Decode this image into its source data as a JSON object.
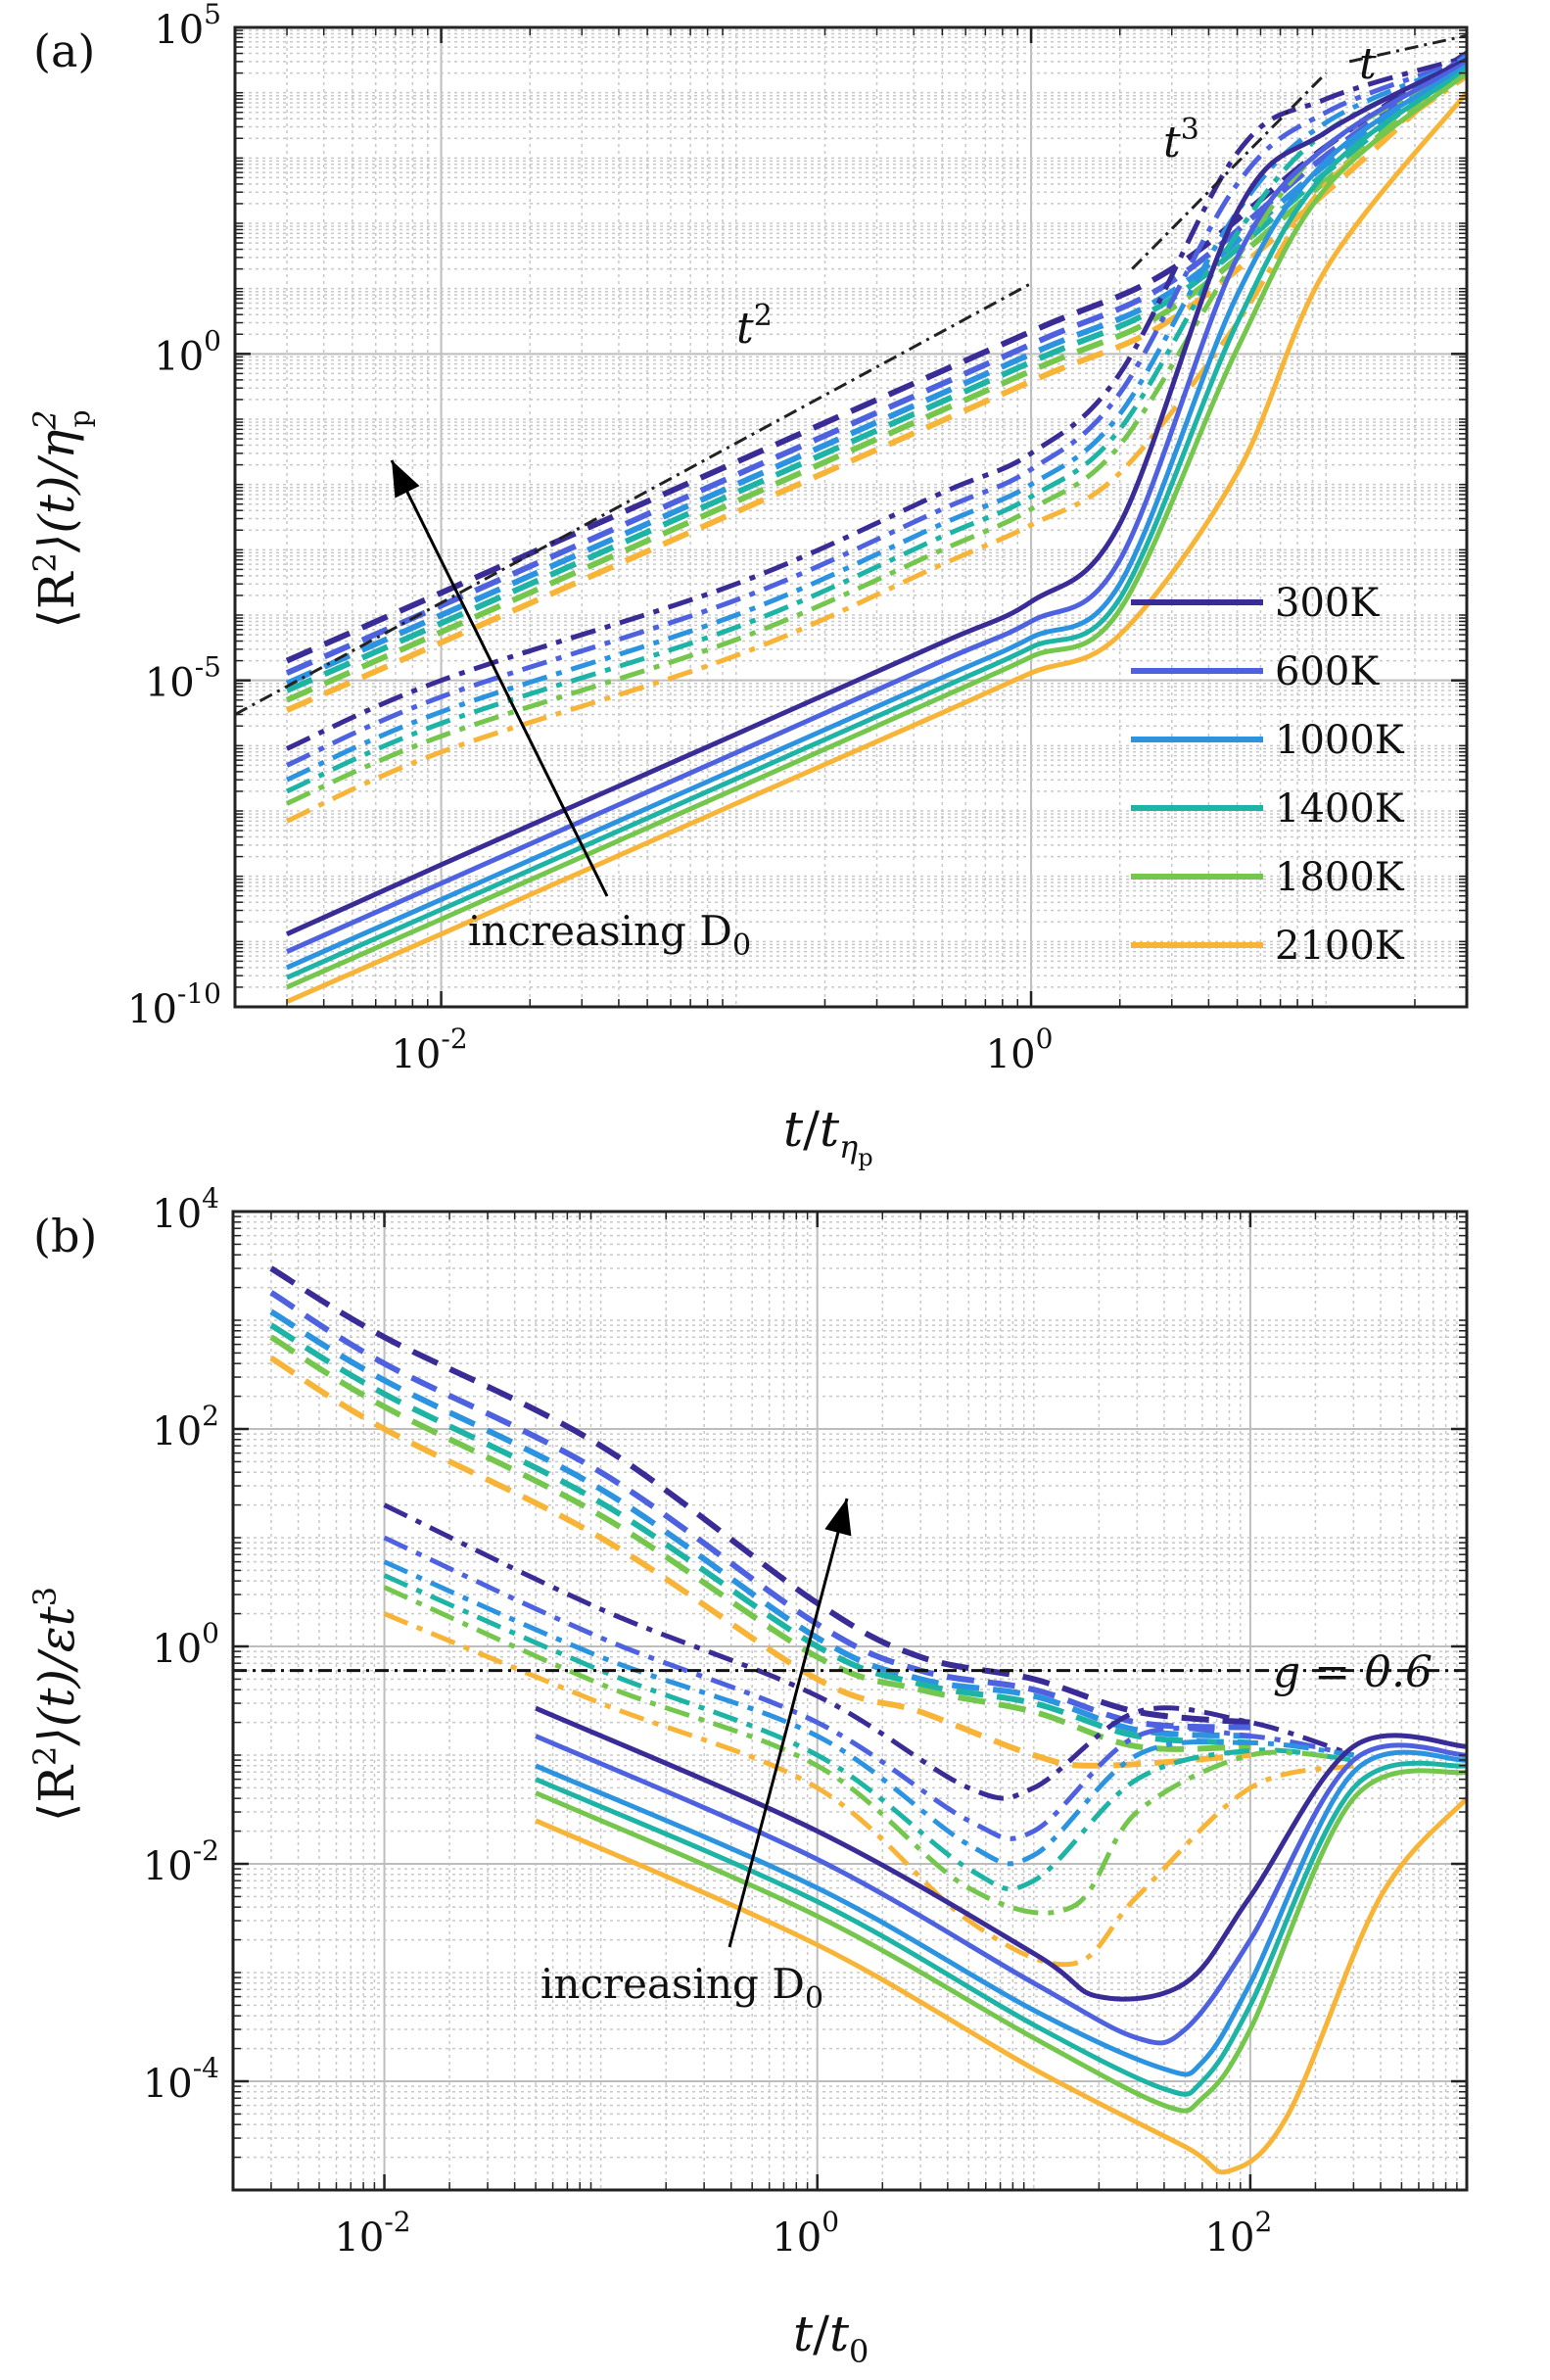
{
  "chart_data": [
    {
      "type": "line",
      "panel_label": "(a)",
      "xlabel": "t/t_ηp",
      "ylabel": "⟨R²⟩(t)/ηp²",
      "xscale": "log",
      "yscale": "log",
      "xlim": [
        0.002,
        30
      ],
      "ylim": [
        1e-10,
        100000
      ],
      "xticks": [
        {
          "v": 0.01,
          "m": "10",
          "e": "-2"
        },
        {
          "v": 1,
          "m": "10",
          "e": "0"
        }
      ],
      "yticks": [
        {
          "v": 1e-10,
          "m": "10",
          "e": "-10"
        },
        {
          "v": 1e-05,
          "m": "10",
          "e": "-5"
        },
        {
          "v": 1,
          "m": "10",
          "e": "0"
        },
        {
          "v": 100000,
          "m": "10",
          "e": "5"
        }
      ],
      "grid": true,
      "legend_position": "lower-right",
      "temperatures": [
        "300K",
        "600K",
        "1000K",
        "1400K",
        "1800K",
        "2100K"
      ],
      "colors": [
        "#3a2c96",
        "#4e62e0",
        "#2b93e0",
        "#1db4a6",
        "#74c64c",
        "#f7b436"
      ],
      "line_styles": {
        "solid": "smallest D0",
        "dashdot": "intermediate D0",
        "dashed": "largest D0"
      },
      "series": [
        {
          "style": "solid",
          "x0": 0.003,
          "y0": [
            8e-10,
            3.5e-10,
            2.5e-10,
            1.5e-10,
            1.2e-10,
            6e-11
          ],
          "slope": 2,
          "knee": 0.8,
          "rise_end": 30,
          "y_end": [
            18000,
            17000,
            16000,
            14000,
            12000,
            9000
          ],
          "k": 6
        }
      ],
      "solid_series": [
        {
          "name": "300K",
          "x": [
            0.003,
            0.01,
            0.1,
            0.5,
            1,
            2,
            5,
            10,
            30
          ],
          "y": [
            1.3e-09,
            1.5e-08,
            1.5e-06,
            3.8e-05,
            0.00016,
            0.0025,
            150.0,
            2500.0,
            32000.0
          ]
        },
        {
          "name": "600K",
          "x": [
            0.003,
            0.01,
            0.1,
            0.5,
            1,
            2,
            5,
            10,
            30
          ],
          "y": [
            7e-10,
            7.8e-09,
            7.8e-07,
            2e-05,
            8e-05,
            0.0007,
            30.0,
            1500.0,
            29000.0
          ]
        },
        {
          "name": "1000K",
          "x": [
            0.003,
            0.01,
            0.1,
            0.5,
            1,
            2,
            5,
            10,
            30
          ],
          "y": [
            4e-10,
            4.4e-09,
            4.4e-07,
            1.1e-05,
            4.5e-05,
            0.0003,
            8,
            900.0,
            26000.0
          ]
        },
        {
          "name": "1400K",
          "x": [
            0.003,
            0.01,
            0.1,
            0.5,
            1,
            2,
            5,
            10,
            30
          ],
          "y": [
            2.8e-10,
            3.1e-09,
            3.1e-07,
            7.8e-06,
            3.2e-05,
            0.00018,
            3,
            600.0,
            23000.0
          ]
        },
        {
          "name": "1800K",
          "x": [
            0.003,
            0.01,
            0.1,
            0.5,
            1,
            2,
            5,
            10,
            30
          ],
          "y": [
            2e-10,
            2.2e-09,
            2.2e-07,
            5.6e-06,
            2.3e-05,
            0.00012,
            1.2,
            350.0,
            20000.0
          ]
        },
        {
          "name": "2100K",
          "x": [
            0.003,
            0.01,
            0.1,
            0.5,
            1,
            2,
            5,
            10,
            30
          ],
          "y": [
            1.2e-10,
            1.3e-09,
            1.3e-07,
            3.2e-06,
            1.3e-05,
            5e-05,
            0.015,
            20,
            10000.0
          ]
        }
      ],
      "dashdot_series": [
        {
          "name": "300K",
          "x": [
            0.003,
            0.01,
            0.1,
            0.5,
            1,
            2,
            5,
            10,
            30
          ],
          "y": [
            9e-07,
            1e-05,
            0.0003,
            0.0075,
            0.03,
            0.5,
            1200.0,
            8000.0,
            35000.0
          ]
        },
        {
          "name": "600K",
          "x": [
            0.003,
            0.01,
            0.1,
            0.5,
            1,
            2,
            5,
            10,
            30
          ],
          "y": [
            5e-07,
            5.6e-06,
            0.00017,
            0.0042,
            0.017,
            0.25,
            400.0,
            5000.0,
            32000.0
          ]
        },
        {
          "name": "1000K",
          "x": [
            0.003,
            0.01,
            0.1,
            0.5,
            1,
            2,
            5,
            10,
            30
          ],
          "y": [
            3e-07,
            3.3e-06,
            0.0001,
            0.0025,
            0.01,
            0.12,
            150.0,
            3500.0,
            30000.0
          ]
        },
        {
          "name": "1400K",
          "x": [
            0.003,
            0.01,
            0.1,
            0.5,
            1,
            2,
            5,
            10,
            30
          ],
          "y": [
            2e-07,
            2.2e-06,
            6.5e-05,
            0.0016,
            0.0065,
            0.07,
            70,
            2500.0,
            28000.0
          ]
        },
        {
          "name": "1800K",
          "x": [
            0.003,
            0.01,
            0.1,
            0.5,
            1,
            2,
            5,
            10,
            30
          ],
          "y": [
            1.3e-07,
            1.4e-06,
            4.2e-05,
            0.001,
            0.0042,
            0.04,
            30,
            1500.0,
            25000.0
          ]
        },
        {
          "name": "2100K",
          "x": [
            0.003,
            0.01,
            0.1,
            0.5,
            1,
            2,
            5,
            10,
            30
          ],
          "y": [
            7e-08,
            8e-07,
            2.4e-05,
            0.0006,
            0.0024,
            0.015,
            3,
            400.0,
            18000.0
          ]
        }
      ],
      "dashed_series": [
        {
          "name": "300K",
          "x": [
            0.003,
            0.01,
            0.1,
            1,
            3,
            10,
            30
          ],
          "y": [
            2e-05,
            0.00022,
            0.022,
            2.2,
            20,
            1500.0,
            40000.0
          ]
        },
        {
          "name": "600K",
          "x": [
            0.003,
            0.01,
            0.1,
            1,
            3,
            10,
            30
          ],
          "y": [
            1.3e-05,
            0.00014,
            0.014,
            1.4,
            13,
            1100.0,
            37000.0
          ]
        },
        {
          "name": "1000K",
          "x": [
            0.003,
            0.01,
            0.1,
            1,
            3,
            10,
            30
          ],
          "y": [
            9e-06,
            0.0001,
            0.01,
            1,
            9,
            800.0,
            35000.0
          ]
        },
        {
          "name": "1400K",
          "x": [
            0.003,
            0.01,
            0.1,
            1,
            3,
            10,
            30
          ],
          "y": [
            7e-06,
            7.5e-05,
            0.0075,
            0.75,
            7,
            600.0,
            33000.0
          ]
        },
        {
          "name": "1800K",
          "x": [
            0.003,
            0.01,
            0.1,
            1,
            3,
            10,
            30
          ],
          "y": [
            5e-06,
            5.5e-05,
            0.0055,
            0.55,
            5,
            450.0,
            30000.0
          ]
        },
        {
          "name": "2100K",
          "x": [
            0.003,
            0.01,
            0.1,
            1,
            3,
            10,
            30
          ],
          "y": [
            3.5e-06,
            3.8e-05,
            0.0038,
            0.38,
            3.4,
            300.0,
            27000.0
          ]
        }
      ],
      "reference_lines": [
        {
          "label": "t²",
          "x": [
            0.002,
            1
          ],
          "y": [
            3e-06,
            12
          ]
        },
        {
          "label": "t³",
          "x": [
            2.2,
            10
          ],
          "y": [
            20,
            20000.0
          ]
        },
        {
          "label": "t",
          "x": [
            12,
            30
          ],
          "y": [
            30000.0,
            75000.0
          ]
        }
      ],
      "annotations": [
        {
          "text": "increasing D0",
          "arrow_from": [
            0.05,
            3e-09
          ],
          "arrow_to": [
            0.007,
            0.05
          ]
        }
      ]
    },
    {
      "type": "line",
      "panel_label": "(b)",
      "xlabel": "t/t0",
      "ylabel": "⟨R²⟩(t)/εt³",
      "xscale": "log",
      "yscale": "log",
      "xlim": [
        0.002,
        1000
      ],
      "ylim": [
        1e-05,
        10000
      ],
      "xticks": [
        {
          "v": 0.01,
          "m": "10",
          "e": "-2"
        },
        {
          "v": 1,
          "m": "10",
          "e": "0"
        },
        {
          "v": 100,
          "m": "10",
          "e": "2"
        }
      ],
      "yticks": [
        {
          "v": 0.0001,
          "m": "10",
          "e": "-4"
        },
        {
          "v": 0.01,
          "m": "10",
          "e": "-2"
        },
        {
          "v": 1,
          "m": "10",
          "e": "0"
        },
        {
          "v": 100,
          "m": "10",
          "e": "2"
        },
        {
          "v": 10000,
          "m": "10",
          "e": "4"
        }
      ],
      "grid": true,
      "temperatures": [
        "300K",
        "600K",
        "1000K",
        "1400K",
        "1800K",
        "2100K"
      ],
      "colors": [
        "#3a2c96",
        "#4e62e0",
        "#2b93e0",
        "#1db4a6",
        "#74c64c",
        "#f7b436"
      ],
      "solid_series": [
        {
          "name": "300K",
          "x": [
            0.05,
            1,
            10,
            20,
            50,
            100,
            300,
            1000
          ],
          "y": [
            0.27,
            0.02,
            0.0015,
            0.0006,
            0.0008,
            0.005,
            0.12,
            0.12
          ]
        },
        {
          "name": "600K",
          "x": [
            0.05,
            1,
            10,
            30,
            50,
            100,
            300,
            1000
          ],
          "y": [
            0.15,
            0.011,
            0.0008,
            0.00025,
            0.0003,
            0.002,
            0.09,
            0.1
          ]
        },
        {
          "name": "1000K",
          "x": [
            0.05,
            1,
            10,
            40,
            60,
            100,
            300,
            1000
          ],
          "y": [
            0.08,
            0.006,
            0.00045,
            0.00013,
            0.00015,
            0.0008,
            0.07,
            0.09
          ]
        },
        {
          "name": "1400K",
          "x": [
            0.05,
            1,
            10,
            40,
            60,
            100,
            300,
            1000
          ],
          "y": [
            0.06,
            0.0045,
            0.00033,
            8.5e-05,
            0.0001,
            0.0005,
            0.05,
            0.08
          ]
        },
        {
          "name": "1800K",
          "x": [
            0.05,
            1,
            10,
            40,
            60,
            100,
            300,
            1000
          ],
          "y": [
            0.045,
            0.0033,
            0.00025,
            6e-05,
            7e-05,
            0.0003,
            0.04,
            0.07
          ]
        },
        {
          "name": "2100K",
          "x": [
            0.05,
            1,
            10,
            50,
            80,
            150,
            400,
            1000
          ],
          "y": [
            0.025,
            0.0018,
            0.00013,
            2.5e-05,
            1.5e-05,
            5e-05,
            0.005,
            0.04
          ]
        }
      ],
      "dashdot_series": [
        {
          "name": "300K",
          "x": [
            0.01,
            0.1,
            1,
            5,
            10,
            30,
            100,
            300
          ],
          "y": [
            20,
            2.2,
            0.35,
            0.05,
            0.05,
            0.25,
            0.2,
            0.1
          ]
        },
        {
          "name": "600K",
          "x": [
            0.01,
            0.1,
            1,
            5,
            10,
            30,
            100,
            300
          ],
          "y": [
            10,
            1.2,
            0.2,
            0.025,
            0.02,
            0.15,
            0.15,
            0.1
          ]
        },
        {
          "name": "1000K",
          "x": [
            0.01,
            0.1,
            1,
            5,
            10,
            30,
            100,
            300
          ],
          "y": [
            6,
            0.8,
            0.15,
            0.015,
            0.012,
            0.1,
            0.13,
            0.1
          ]
        },
        {
          "name": "1400K",
          "x": [
            0.01,
            0.1,
            1,
            5,
            10,
            30,
            100,
            300
          ],
          "y": [
            4.5,
            0.6,
            0.1,
            0.009,
            0.007,
            0.06,
            0.11,
            0.09
          ]
        },
        {
          "name": "1800K",
          "x": [
            0.01,
            0.1,
            1,
            5,
            15,
            30,
            100,
            300
          ],
          "y": [
            3.5,
            0.45,
            0.08,
            0.006,
            0.004,
            0.03,
            0.1,
            0.09
          ]
        },
        {
          "name": "2100K",
          "x": [
            0.01,
            0.1,
            1,
            5,
            15,
            30,
            100,
            300
          ],
          "y": [
            2,
            0.3,
            0.05,
            0.003,
            0.0012,
            0.005,
            0.05,
            0.08
          ]
        }
      ],
      "dashed_series": [
        {
          "name": "300K",
          "x": [
            0.003,
            0.01,
            0.1,
            1,
            3,
            10,
            30,
            100
          ],
          "y": [
            3000,
            700,
            70,
            2.5,
            0.8,
            0.5,
            0.25,
            0.2
          ]
        },
        {
          "name": "600K",
          "x": [
            0.003,
            0.01,
            0.1,
            1,
            3,
            10,
            30,
            100
          ],
          "y": [
            1800,
            400,
            40,
            1.6,
            0.6,
            0.4,
            0.2,
            0.18
          ]
        },
        {
          "name": "1000K",
          "x": [
            0.003,
            0.01,
            0.1,
            1,
            3,
            10,
            30,
            100
          ],
          "y": [
            1200,
            280,
            28,
            1.2,
            0.5,
            0.35,
            0.17,
            0.15
          ]
        },
        {
          "name": "1400K",
          "x": [
            0.003,
            0.01,
            0.1,
            1,
            3,
            10,
            30,
            100
          ],
          "y": [
            900,
            210,
            21,
            1,
            0.45,
            0.3,
            0.15,
            0.13
          ]
        },
        {
          "name": "1800K",
          "x": [
            0.003,
            0.01,
            0.1,
            1,
            3,
            10,
            30,
            100
          ],
          "y": [
            700,
            160,
            16,
            0.8,
            0.4,
            0.25,
            0.12,
            0.12
          ]
        },
        {
          "name": "2100K",
          "x": [
            0.003,
            0.01,
            0.1,
            1,
            3,
            10,
            20,
            100
          ],
          "y": [
            450,
            100,
            10,
            0.5,
            0.25,
            0.1,
            0.08,
            0.1
          ]
        }
      ],
      "reference_lines": [
        {
          "label": "g = 0.6",
          "y": 0.6
        }
      ],
      "annotations": [
        {
          "text": "increasing D0",
          "arrow_from": [
            0.3,
            0.0005
          ],
          "arrow_to": [
            1,
            30
          ]
        }
      ]
    }
  ],
  "labels": {
    "a": "(a)",
    "b": "(b)",
    "xa_t": "t",
    "xa_sub": "η",
    "xa_subsub": "p",
    "xb_t": "t",
    "xb_sub": "0",
    "ya_main": "⟨R",
    "ya_sup": "2",
    "ya_mid": "⟩(t)/η",
    "ya_sub": "p",
    "yb_main": "⟨R",
    "yb_sup": "2",
    "yb_mid": "⟩(t)/εt",
    "yb_sup2": "3",
    "ann_a": "increasing D",
    "ann_a_sub": "0",
    "ann_b": "increasing D",
    "ann_b_sub": "0",
    "t2": "t",
    "t2_sup": "2",
    "t3": "t",
    "t3_sup": "3",
    "t1": "t",
    "g_line": "g = 0.6"
  }
}
